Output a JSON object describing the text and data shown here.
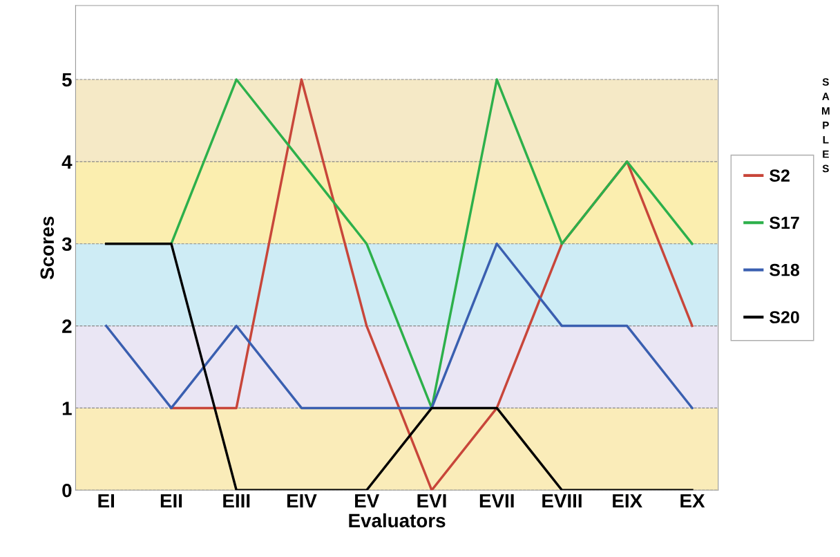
{
  "chart_data": {
    "type": "line",
    "xlabel": "Evaluators",
    "ylabel": "Scores",
    "legend_title": "SAMPLES",
    "categories": [
      "EI",
      "EII",
      "EIII",
      "EIV",
      "EV",
      "EVI",
      "EVII",
      "EVIII",
      "EIX",
      "EX"
    ],
    "series": [
      {
        "name": "S2",
        "color": "#c8463a",
        "values": [
          null,
          1,
          1,
          5,
          2,
          0,
          1,
          3,
          4,
          2
        ]
      },
      {
        "name": "S17",
        "color": "#2db04b",
        "values": [
          null,
          3,
          5,
          4,
          3,
          1,
          5,
          3,
          4,
          3
        ]
      },
      {
        "name": "S18",
        "color": "#3a5fb0",
        "values": [
          2,
          1,
          2,
          1,
          1,
          1,
          3,
          2,
          2,
          1
        ]
      },
      {
        "name": "S20",
        "color": "#000000",
        "values": [
          3,
          3,
          0,
          0,
          0,
          1,
          1,
          0,
          0,
          0
        ]
      }
    ],
    "ylim": [
      0,
      5.9
    ],
    "yticks": [
      0,
      1,
      2,
      3,
      4,
      5
    ],
    "grid": "y",
    "legend": "right",
    "marker": "none",
    "line_style": "solid",
    "bands": [
      {
        "axis": "y",
        "from": 0,
        "to": 1,
        "color": "#f7e08a"
      },
      {
        "axis": "y",
        "from": 1,
        "to": 2,
        "color": "#dcd6ec"
      },
      {
        "axis": "y",
        "from": 2,
        "to": 3,
        "color": "#aee0ee"
      },
      {
        "axis": "y",
        "from": 3,
        "to": 4,
        "color": "#f9e27a"
      },
      {
        "axis": "y",
        "from": 4,
        "to": 5,
        "color": "#eedba0"
      }
    ]
  }
}
